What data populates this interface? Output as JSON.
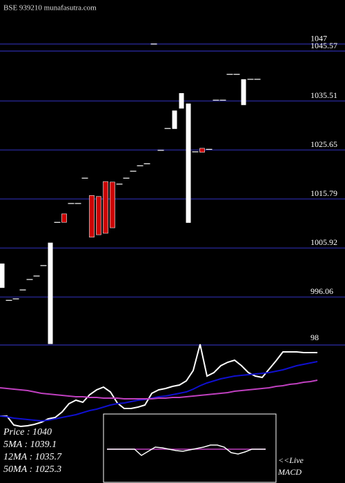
{
  "chart_data": [
    {
      "type": "candlestick",
      "title": "BSE 939210  munafasutra.com",
      "open": [
        997.9,
        995.4,
        995.7,
        997.5,
        999.6,
        1000.3,
        1002.4,
        986.6,
        1011.1,
        1012.8,
        1014.9,
        1014.9,
        1020.0,
        1016.5,
        1016.3,
        1019.3,
        1019.2,
        1018.8,
        1020.0,
        1021.4,
        1022.5,
        1022.9,
        1047.0,
        1025.6,
        1030.0,
        1029.9,
        1034.0,
        1011.0,
        1025.3,
        1026.0,
        1025.8,
        1035.7,
        1035.7,
        1040.9,
        1040.9,
        1034.7,
        1039.9,
        1039.9
      ],
      "close": [
        1002.8,
        995.4,
        995.7,
        997.5,
        999.6,
        1000.3,
        1002.4,
        1007.0,
        1011.1,
        1011.1,
        1014.9,
        1014.9,
        1020.0,
        1008.1,
        1008.6,
        1008.9,
        1010.0,
        1018.8,
        1020.0,
        1021.4,
        1022.5,
        1022.9,
        1047.0,
        1025.6,
        1030.0,
        1033.6,
        1037.1,
        1035.0,
        1025.3,
        1025.2,
        1025.8,
        1035.7,
        1035.7,
        1040.9,
        1040.9,
        1039.9,
        1039.9,
        1039.9
      ],
      "up_color": "#ffffff",
      "down_color": "#cc0000",
      "grid_color": "#1c1c6b",
      "ylim": [
        986.4,
        1055.85
      ],
      "yticks": [
        1047,
        1045.57,
        1035.51,
        1025.65,
        1015.79,
        1005.92,
        996.06
      ],
      "annotations": [
        "Price    : 1040",
        "5MA    : 1039.1",
        "12MA  : 1035.7",
        "50MA  : 1025.3"
      ]
    },
    {
      "type": "line",
      "ylim": [
        -22,
        98
      ],
      "yticks": [
        98
      ],
      "grid_color": "#1c1c6b",
      "series": [
        {
          "color": "#ffffff",
          "values": [
            -5,
            -5,
            -18,
            -20,
            -19,
            -17,
            -14,
            -9,
            -7,
            1,
            13,
            18,
            15,
            26,
            33,
            37,
            30,
            14,
            6,
            6,
            8,
            11,
            28,
            33,
            35,
            38,
            40,
            46,
            61,
            99,
            53,
            58,
            68,
            73,
            76,
            68,
            58,
            53,
            51,
            63,
            75,
            88,
            88,
            88,
            87,
            87,
            87
          ]
        },
        {
          "color": "#1010d0",
          "values": [
            -5,
            -6,
            -8,
            -9,
            -10,
            -11,
            -12,
            -11,
            -9,
            -7,
            -5,
            -3,
            0,
            3,
            5,
            8,
            11,
            13,
            14,
            16,
            18,
            19,
            21,
            23,
            24,
            26,
            28,
            30,
            34,
            39,
            43,
            46,
            49,
            51,
            53,
            54,
            55,
            56,
            57,
            58,
            60,
            62,
            65,
            68,
            70,
            72,
            74
          ]
        },
        {
          "color": "#c040c0",
          "values": [
            36,
            35,
            34,
            33,
            32,
            30,
            28,
            27,
            26,
            25,
            24,
            23,
            23,
            22,
            22,
            21,
            21,
            21,
            20,
            20,
            20,
            20,
            20,
            21,
            21,
            22,
            22,
            23,
            24,
            25,
            26,
            27,
            28,
            29,
            31,
            32,
            33,
            34,
            35,
            36,
            38,
            39,
            41,
            42,
            44,
            45,
            47
          ]
        }
      ]
    },
    {
      "type": "macd",
      "label": [
        "<<Live",
        "MACD"
      ],
      "ylim": [
        -4.9,
        5.1
      ],
      "series": [
        {
          "color": "#ffffff",
          "values": [
            0,
            0,
            0,
            0,
            0,
            -0.9,
            -0.3,
            0.3,
            0.2,
            0,
            -0.2,
            -0.3,
            -0.1,
            0.1,
            0.3,
            0.6,
            0.6,
            0.3,
            -0.5,
            -0.7,
            -0.4,
            0,
            0,
            0
          ]
        },
        {
          "color": "#c040c0",
          "values": [
            0,
            0,
            0,
            0,
            0,
            0,
            0,
            0,
            0,
            0,
            0,
            0,
            0,
            0,
            0,
            0,
            0,
            0,
            0,
            0,
            0,
            0,
            0,
            0
          ]
        }
      ]
    }
  ]
}
